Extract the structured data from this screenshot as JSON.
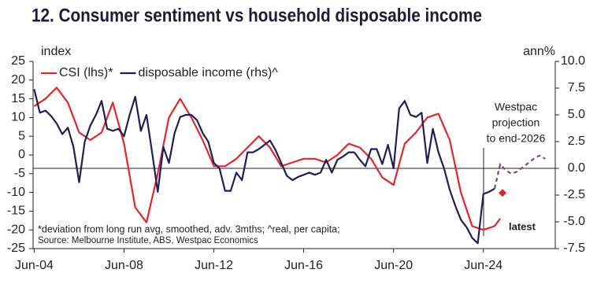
{
  "chart_data": {
    "type": "line",
    "title": "12. Consumer sentiment vs household disposable income",
    "ylabel": "index",
    "y2label": "ann%",
    "xlim": [
      2004.45,
      2027.7
    ],
    "xticks": [
      {
        "value": 2004.5,
        "label": "Jun-04"
      },
      {
        "value": 2008.5,
        "label": "Jun-08"
      },
      {
        "value": 2012.5,
        "label": "Jun-12"
      },
      {
        "value": 2016.5,
        "label": "Jun-16"
      },
      {
        "value": 2020.5,
        "label": "Jun-20"
      },
      {
        "value": 2024.5,
        "label": "Jun-24"
      }
    ],
    "ylim": [
      -25,
      25
    ],
    "yticks": [
      25,
      20,
      15,
      10,
      5,
      0,
      -5,
      -10,
      -15,
      -20,
      -25
    ],
    "y2lim": [
      -7.5,
      10
    ],
    "y2ticks": [
      {
        "value": 10,
        "label": "10.0"
      },
      7.5,
      {
        "value": 5,
        "label": "5.0"
      },
      2.5,
      {
        "value": 0,
        "label": "0.0"
      },
      -2.5,
      {
        "value": -5,
        "label": "-5.0"
      },
      -7.5
    ],
    "y2_zero_line": true,
    "legend": "top-left",
    "series": [
      {
        "name": "CSI (lhs)*",
        "color": "#e3262b",
        "axis": "y",
        "x": [
          2004.5,
          2005.0,
          2005.5,
          2006.0,
          2006.5,
          2007.0,
          2007.5,
          2008.0,
          2008.5,
          2009.0,
          2009.5,
          2010.0,
          2010.5,
          2011.0,
          2011.5,
          2012.0,
          2012.5,
          2013.0,
          2013.5,
          2014.0,
          2014.5,
          2015.0,
          2015.5,
          2016.0,
          2016.5,
          2017.0,
          2017.5,
          2018.0,
          2018.5,
          2019.0,
          2019.5,
          2020.0,
          2020.5,
          2021.0,
          2021.5,
          2022.0,
          2022.5,
          2023.0,
          2023.5,
          2024.0,
          2024.5,
          2025.0,
          2025.25
        ],
        "values": [
          13,
          15,
          18,
          14,
          6,
          4,
          6,
          14,
          3,
          -14,
          -18,
          -5,
          10,
          15,
          10,
          4,
          -3,
          -3,
          -1,
          2,
          5,
          2,
          -3,
          -2,
          -1,
          -1,
          -2,
          0,
          3,
          2,
          -1,
          -6,
          -8,
          3,
          6,
          10,
          11,
          4,
          -10,
          -19,
          -20,
          -19,
          -17
        ]
      },
      {
        "name": "disposable income (rhs)^",
        "color": "#1f1f57",
        "axis": "y2",
        "x": [
          2004.5,
          2004.75,
          2005.0,
          2005.25,
          2005.5,
          2005.75,
          2006.0,
          2006.25,
          2006.5,
          2006.75,
          2007.0,
          2007.25,
          2007.5,
          2007.75,
          2008.0,
          2008.25,
          2008.5,
          2008.75,
          2009.0,
          2009.25,
          2009.5,
          2009.75,
          2010.0,
          2010.25,
          2010.5,
          2010.75,
          2011.0,
          2011.25,
          2011.5,
          2011.75,
          2012.0,
          2012.25,
          2012.5,
          2012.75,
          2013.0,
          2013.25,
          2013.5,
          2013.75,
          2014.0,
          2014.25,
          2014.5,
          2014.75,
          2015.0,
          2015.25,
          2015.5,
          2015.75,
          2016.0,
          2016.25,
          2016.5,
          2016.75,
          2017.0,
          2017.25,
          2017.5,
          2017.75,
          2018.0,
          2018.25,
          2018.5,
          2018.75,
          2019.0,
          2019.25,
          2019.5,
          2019.75,
          2020.0,
          2020.25,
          2020.5,
          2020.75,
          2021.0,
          2021.25,
          2021.5,
          2021.75,
          2022.0,
          2022.25,
          2022.5,
          2022.75,
          2023.0,
          2023.25,
          2023.5,
          2023.75,
          2024.0,
          2024.25,
          2024.5,
          2024.75,
          2025.0
        ],
        "values": [
          7.4,
          5.2,
          5.4,
          4.9,
          4.2,
          3.2,
          3.8,
          2.0,
          -1.3,
          2.5,
          4.0,
          5.0,
          6.3,
          3.7,
          3.5,
          3.7,
          3.0,
          5.0,
          6.7,
          3.5,
          5.0,
          1.5,
          -2.2,
          2.0,
          0.5,
          3.3,
          4.8,
          5.0,
          5.0,
          4.5,
          3.3,
          2.5,
          0.5,
          0.0,
          -2.1,
          -2.1,
          -0.4,
          -1.1,
          1.5,
          1.5,
          1.8,
          2.2,
          2.6,
          1.7,
          0.5,
          -0.7,
          -1.1,
          -0.8,
          -0.6,
          -0.4,
          -0.6,
          -0.4,
          0.8,
          -0.4,
          0.8,
          1.1,
          1.5,
          1.5,
          0.8,
          0.2,
          1.8,
          1.8,
          0.4,
          2.2,
          0.0,
          5.6,
          6.3,
          5.0,
          4.8,
          5.2,
          0.5,
          3.7,
          1.5,
          0.0,
          -2.0,
          -3.5,
          -4.8,
          -5.5,
          -6.5,
          -7.0,
          -2.4,
          -2.2,
          -1.9
        ]
      },
      {
        "color": "#7b4a7d",
        "axis": "y2",
        "dashed": true,
        "x": [
          2025.0,
          2025.25,
          2025.5,
          2025.75,
          2026.0,
          2026.25,
          2026.5,
          2026.75,
          2027.0,
          2027.25
        ],
        "values": [
          -1.9,
          0.4,
          -0.2,
          -0.5,
          -0.3,
          0.1,
          0.5,
          0.9,
          1.2,
          0.9
        ]
      }
    ],
    "projection_note": [
      "Westpac",
      "projection",
      "to end-2026"
    ],
    "latest": {
      "text": "latest",
      "x": 2025.35,
      "y": -2.3,
      "axis": "y2",
      "color": "#d7262b"
    },
    "footnotes": [
      "*deviation from long run avg, smoothed, adv. 3mths; ^real, per capita;",
      "Source: Melbourne Institute, ABS, Westpac Economics"
    ]
  }
}
